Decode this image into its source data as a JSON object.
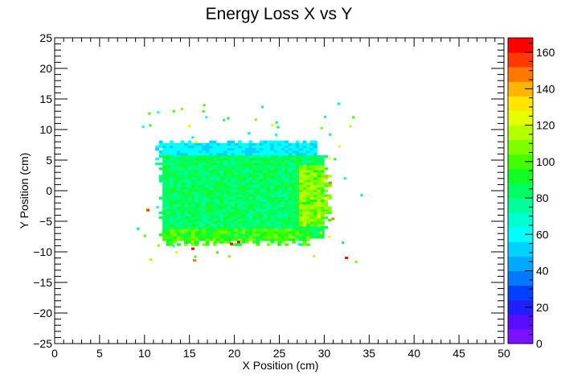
{
  "chart_data": {
    "type": "heatmap",
    "title": "Energy Loss X vs Y",
    "xlabel": "X Position (cm)",
    "ylabel": "Y Position (cm)",
    "xlim": [
      0,
      50
    ],
    "ylim": [
      -25,
      25
    ],
    "x_ticks": [
      "0",
      "5",
      "10",
      "15",
      "20",
      "25",
      "30",
      "35",
      "40",
      "45",
      "50"
    ],
    "y_ticks": [
      "−25",
      "−20",
      "−15",
      "−10",
      "−5",
      "0",
      "5",
      "10",
      "15",
      "20",
      "25"
    ],
    "colorbar": {
      "range": [
        0,
        168
      ],
      "ticks": [
        "0",
        "20",
        "40",
        "60",
        "80",
        "100",
        "120",
        "140",
        "160"
      ],
      "palette": [
        "#7a12ff",
        "#5a0cff",
        "#1f1fff",
        "#0040ff",
        "#0078ff",
        "#00a8ff",
        "#00d2ff",
        "#00ffff",
        "#00ffd0",
        "#00ff9c",
        "#00ff62",
        "#12ff26",
        "#44ff00",
        "#7dff00",
        "#b4ff00",
        "#e6ff00",
        "#ffe600",
        "#ffb400",
        "#ff7800",
        "#ff3a00",
        "#ff0000"
      ]
    },
    "regions": [
      {
        "name": "core",
        "x": [
          11.5,
          30
        ],
        "y": [
          -8,
          5.5
        ],
        "value": 84
      },
      {
        "name": "top-band",
        "x": [
          11,
          29
        ],
        "y": [
          4,
          8.2
        ],
        "value": 58
      },
      {
        "name": "bottom-edge",
        "x": [
          12,
          28
        ],
        "y": [
          -9,
          -6.5
        ],
        "value": 95
      },
      {
        "name": "right-edge",
        "x": [
          27,
          30.5
        ],
        "y": [
          -6,
          4
        ],
        "value": 102
      }
    ],
    "hotspots": [
      {
        "x": 29.8,
        "y": 2.5,
        "value": 140
      },
      {
        "x": 30.5,
        "y": 1.5,
        "value": 150
      },
      {
        "x": 30.2,
        "y": -1.0,
        "value": 130
      },
      {
        "x": 29.2,
        "y": -4.0,
        "value": 135
      },
      {
        "x": 19.5,
        "y": -8.5,
        "value": 165
      },
      {
        "x": 20.3,
        "y": -8.2,
        "value": 160
      },
      {
        "x": 15.2,
        "y": -9.3,
        "value": 160
      },
      {
        "x": 32.3,
        "y": -10.8,
        "value": 160
      },
      {
        "x": 15.4,
        "y": -11.2,
        "value": 150
      },
      {
        "x": 10.2,
        "y": -3.0,
        "value": 155
      },
      {
        "x": 30.8,
        "y": -4.4,
        "value": 150
      }
    ]
  }
}
